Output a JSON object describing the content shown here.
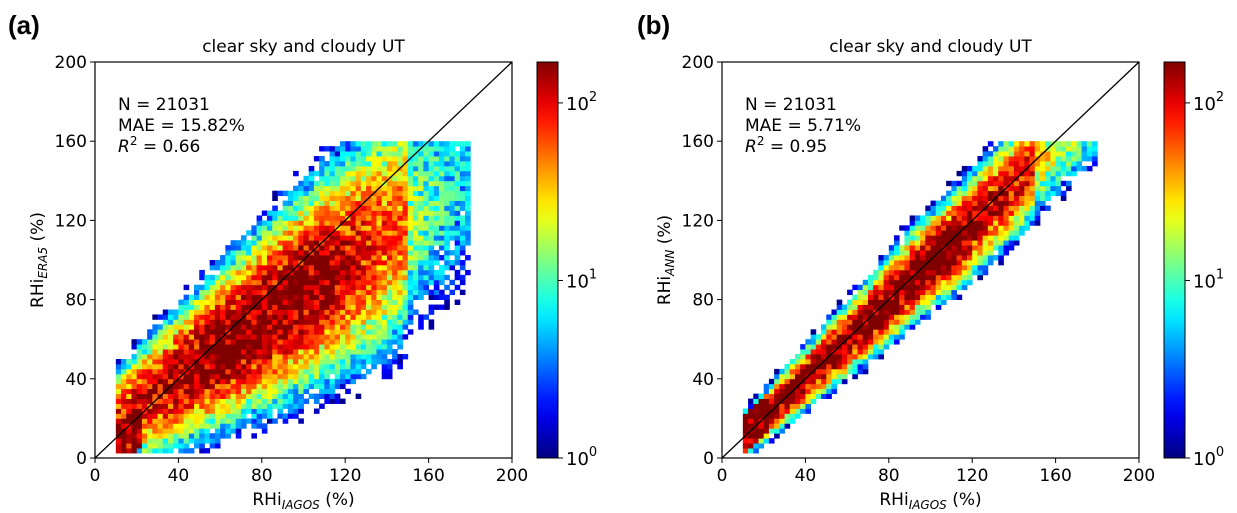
{
  "colors": {
    "accent_line": "#000000",
    "colormap": "jet"
  },
  "chart_data": [
    {
      "type": "heatmap",
      "panel_label": "(a)",
      "title": "clear sky and cloudy UT",
      "xlabel": {
        "base": "RHi",
        "sub": "IAGOS",
        "tail": " (%)"
      },
      "ylabel": {
        "base": "RHi",
        "sub": "ERA5",
        "tail": " (%)"
      },
      "xlim": [
        0,
        200
      ],
      "ylim": [
        0,
        200
      ],
      "xticks": [
        "0",
        "40",
        "80",
        "120",
        "160",
        "200"
      ],
      "yticks": [
        "0",
        "40",
        "80",
        "120",
        "160",
        "200"
      ],
      "annotations": {
        "n": "N = 21031",
        "mae": "MAE = 15.82%",
        "r2_label": "R",
        "r2_exp": "2",
        "r2_value": " = 0.66"
      },
      "one_to_one_line": true,
      "bin_width": 2.5,
      "colorbar": {
        "scale": "log",
        "range": [
          1,
          170
        ],
        "ticks": [
          {
            "base": "10",
            "exp": "0",
            "value": 1
          },
          {
            "base": "10",
            "exp": "1",
            "value": 10
          },
          {
            "base": "10",
            "exp": "2",
            "value": 100
          }
        ]
      },
      "density_model": {
        "x_range": [
          10,
          180
        ],
        "slope": 0.72,
        "intercept": 12,
        "spread": 16,
        "count_scale": 190,
        "hotspot": [
          108,
          100
        ]
      }
    },
    {
      "type": "heatmap",
      "panel_label": "(b)",
      "title": "clear sky and cloudy UT",
      "xlabel": {
        "base": "RHi",
        "sub": "IAGOS",
        "tail": " (%)"
      },
      "ylabel": {
        "base": "RHi",
        "sub": "ANN",
        "tail": " (%)"
      },
      "xlim": [
        0,
        200
      ],
      "ylim": [
        0,
        200
      ],
      "xticks": [
        "0",
        "40",
        "80",
        "120",
        "160",
        "200"
      ],
      "yticks": [
        "0",
        "40",
        "80",
        "120",
        "160",
        "200"
      ],
      "annotations": {
        "n": "N = 21031",
        "mae": "MAE = 5.71%",
        "r2_label": "R",
        "r2_exp": "2",
        "r2_value": " = 0.95"
      },
      "one_to_one_line": true,
      "bin_width": 2.5,
      "colorbar": {
        "scale": "log",
        "range": [
          1,
          170
        ],
        "ticks": [
          {
            "base": "10",
            "exp": "0",
            "value": 1
          },
          {
            "base": "10",
            "exp": "1",
            "value": 10
          },
          {
            "base": "10",
            "exp": "2",
            "value": 100
          }
        ]
      },
      "density_model": {
        "x_range": [
          10,
          180
        ],
        "slope": 0.98,
        "intercept": 1,
        "spread": 7,
        "count_scale": 230,
        "hotspot": [
          105,
          103
        ]
      }
    }
  ]
}
